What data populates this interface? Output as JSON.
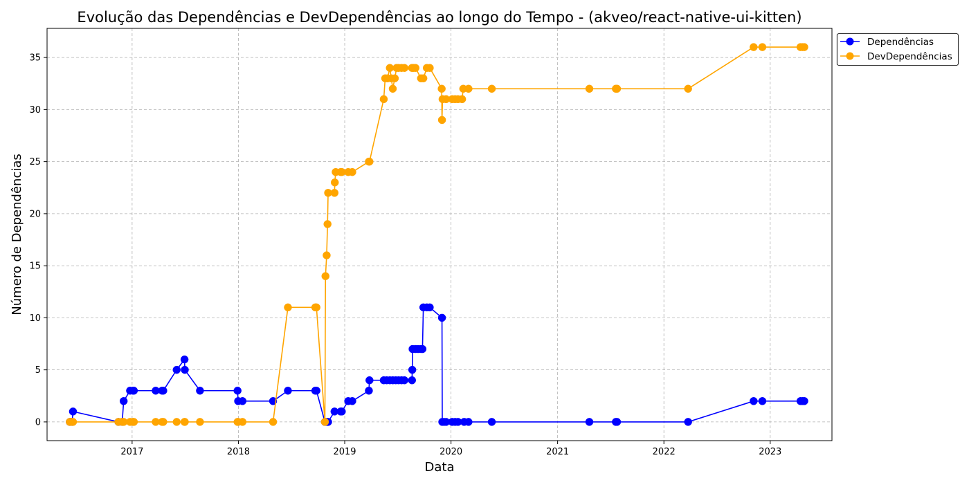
{
  "chart_data": {
    "type": "line",
    "title": "Evolução das Dependências e DevDependências ao longo do Tempo - (akveo/react-native-ui-kitten)",
    "xlabel": "Data",
    "ylabel": "Número de Dependências",
    "xlim": [
      "2016-03-15",
      "2023-08-01"
    ],
    "ylim": [
      -1.8,
      37.8
    ],
    "x_ticks": [
      "2017",
      "2018",
      "2019",
      "2020",
      "2021",
      "2022",
      "2023"
    ],
    "y_ticks": [
      0,
      5,
      10,
      15,
      20,
      25,
      30,
      35
    ],
    "grid": true,
    "legend_position": "outside-top-right",
    "series": [
      {
        "name": "Dependências",
        "color": "#0000ff",
        "points": [
          [
            "2016-06-01",
            0
          ],
          [
            "2016-06-05",
            0
          ],
          [
            "2016-06-09",
            0
          ],
          [
            "2016-06-12",
            1
          ],
          [
            "2016-11-15",
            0
          ],
          [
            "2016-11-28",
            0
          ],
          [
            "2016-12-03",
            2
          ],
          [
            "2016-12-25",
            3
          ],
          [
            "2017-01-04",
            3
          ],
          [
            "2017-01-07",
            3
          ],
          [
            "2017-03-23",
            3
          ],
          [
            "2017-04-14",
            3
          ],
          [
            "2017-04-18",
            3
          ],
          [
            "2017-06-03",
            5
          ],
          [
            "2017-06-30",
            6
          ],
          [
            "2017-07-01",
            5
          ],
          [
            "2017-08-22",
            3
          ],
          [
            "2017-12-29",
            3
          ],
          [
            "2017-12-31",
            2
          ],
          [
            "2018-01-15",
            2
          ],
          [
            "2018-04-30",
            2
          ],
          [
            "2018-06-20",
            3
          ],
          [
            "2018-09-22",
            3
          ],
          [
            "2018-09-26",
            3
          ],
          [
            "2018-10-25",
            0
          ],
          [
            "2018-10-27",
            0
          ],
          [
            "2018-10-31",
            0
          ],
          [
            "2018-11-03",
            0
          ],
          [
            "2018-11-05",
            0
          ],
          [
            "2018-11-27",
            1
          ],
          [
            "2018-12-18",
            1
          ],
          [
            "2018-12-22",
            1
          ],
          [
            "2019-01-13",
            2
          ],
          [
            "2019-01-27",
            2
          ],
          [
            "2019-03-25",
            3
          ],
          [
            "2019-03-27",
            4
          ],
          [
            "2019-05-15",
            4
          ],
          [
            "2019-05-25",
            4
          ],
          [
            "2019-06-05",
            4
          ],
          [
            "2019-06-15",
            4
          ],
          [
            "2019-06-25",
            4
          ],
          [
            "2019-07-05",
            4
          ],
          [
            "2019-07-15",
            4
          ],
          [
            "2019-07-25",
            4
          ],
          [
            "2019-08-20",
            4
          ],
          [
            "2019-08-21",
            5
          ],
          [
            "2019-08-22",
            7
          ],
          [
            "2019-09-01",
            7
          ],
          [
            "2019-09-10",
            7
          ],
          [
            "2019-09-20",
            7
          ],
          [
            "2019-09-25",
            7
          ],
          [
            "2019-09-28",
            11
          ],
          [
            "2019-10-10",
            11
          ],
          [
            "2019-10-20",
            11
          ],
          [
            "2019-12-01",
            10
          ],
          [
            "2019-12-02",
            0
          ],
          [
            "2019-12-08",
            0
          ],
          [
            "2019-12-15",
            0
          ],
          [
            "2020-01-05",
            0
          ],
          [
            "2020-01-15",
            0
          ],
          [
            "2020-01-25",
            0
          ],
          [
            "2020-02-15",
            0
          ],
          [
            "2020-03-01",
            0
          ],
          [
            "2020-05-20",
            0
          ],
          [
            "2021-04-20",
            0
          ],
          [
            "2021-07-20",
            0
          ],
          [
            "2021-07-24",
            0
          ],
          [
            "2022-03-25",
            0
          ],
          [
            "2022-11-05",
            2
          ],
          [
            "2022-12-05",
            2
          ],
          [
            "2023-04-15",
            2
          ],
          [
            "2023-04-22",
            2
          ],
          [
            "2023-04-28",
            2
          ]
        ]
      },
      {
        "name": "DevDependências",
        "color": "#ffa500",
        "points": [
          [
            "2016-06-01",
            0
          ],
          [
            "2016-06-05",
            0
          ],
          [
            "2016-06-09",
            0
          ],
          [
            "2016-06-12",
            0
          ],
          [
            "2016-11-15",
            0
          ],
          [
            "2016-11-28",
            0
          ],
          [
            "2016-12-03",
            0
          ],
          [
            "2016-12-25",
            0
          ],
          [
            "2017-01-04",
            0
          ],
          [
            "2017-01-07",
            0
          ],
          [
            "2017-03-23",
            0
          ],
          [
            "2017-04-14",
            0
          ],
          [
            "2017-04-18",
            0
          ],
          [
            "2017-06-03",
            0
          ],
          [
            "2017-06-30",
            0
          ],
          [
            "2017-07-01",
            0
          ],
          [
            "2017-08-22",
            0
          ],
          [
            "2017-12-29",
            0
          ],
          [
            "2017-12-31",
            0
          ],
          [
            "2018-01-15",
            0
          ],
          [
            "2018-04-30",
            0
          ],
          [
            "2018-06-20",
            11
          ],
          [
            "2018-09-22",
            11
          ],
          [
            "2018-09-26",
            11
          ],
          [
            "2018-10-25",
            0
          ],
          [
            "2018-10-27",
            14
          ],
          [
            "2018-10-31",
            16
          ],
          [
            "2018-11-03",
            19
          ],
          [
            "2018-11-05",
            22
          ],
          [
            "2018-11-27",
            22
          ],
          [
            "2018-11-28",
            23
          ],
          [
            "2018-12-01",
            24
          ],
          [
            "2018-12-18",
            24
          ],
          [
            "2018-12-22",
            24
          ],
          [
            "2019-01-13",
            24
          ],
          [
            "2019-01-27",
            24
          ],
          [
            "2019-03-25",
            25
          ],
          [
            "2019-03-27",
            25
          ],
          [
            "2019-05-15",
            31
          ],
          [
            "2019-05-20",
            33
          ],
          [
            "2019-05-28",
            33
          ],
          [
            "2019-06-05",
            34
          ],
          [
            "2019-06-10",
            33
          ],
          [
            "2019-06-15",
            32
          ],
          [
            "2019-06-22",
            33
          ],
          [
            "2019-06-28",
            34
          ],
          [
            "2019-07-05",
            34
          ],
          [
            "2019-07-15",
            34
          ],
          [
            "2019-07-25",
            34
          ],
          [
            "2019-08-20",
            34
          ],
          [
            "2019-08-25",
            34
          ],
          [
            "2019-09-01",
            34
          ],
          [
            "2019-09-20",
            33
          ],
          [
            "2019-09-28",
            33
          ],
          [
            "2019-10-10",
            34
          ],
          [
            "2019-10-20",
            34
          ],
          [
            "2019-11-30",
            32
          ],
          [
            "2019-12-01",
            29
          ],
          [
            "2019-12-03",
            31
          ],
          [
            "2019-12-15",
            31
          ],
          [
            "2020-01-05",
            31
          ],
          [
            "2020-01-15",
            31
          ],
          [
            "2020-01-25",
            31
          ],
          [
            "2020-02-08",
            31
          ],
          [
            "2020-02-12",
            32
          ],
          [
            "2020-03-01",
            32
          ],
          [
            "2020-05-20",
            32
          ],
          [
            "2021-04-20",
            32
          ],
          [
            "2021-07-20",
            32
          ],
          [
            "2021-07-24",
            32
          ],
          [
            "2022-03-25",
            32
          ],
          [
            "2022-11-05",
            36
          ],
          [
            "2022-12-05",
            36
          ],
          [
            "2023-04-15",
            36
          ],
          [
            "2023-04-22",
            36
          ],
          [
            "2023-04-28",
            36
          ]
        ]
      }
    ]
  }
}
